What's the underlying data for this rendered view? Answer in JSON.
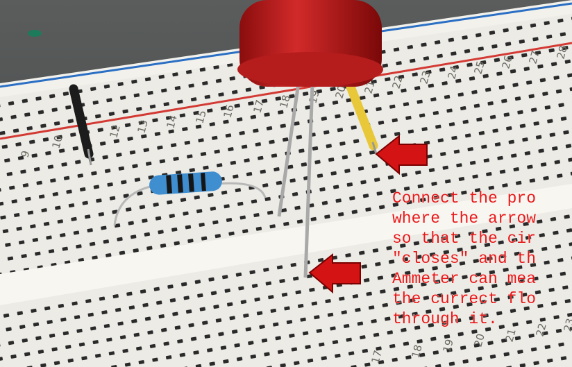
{
  "annotation": {
    "lines": [
      "Connect the pro",
      "where the arrow",
      "so that the cir",
      "\"closes\" and th",
      "Ammeter can mea",
      "the currect flo",
      "through it."
    ]
  },
  "breadboard": {
    "top_numbers": [
      "9",
      "10",
      "12",
      "13",
      "14",
      "15",
      "16",
      "17",
      "18",
      "19",
      "20",
      "21",
      "22",
      "23",
      "24",
      "25",
      "26",
      "27",
      "28"
    ],
    "bottom_numbers": [
      "17",
      "18",
      "19",
      "20",
      "21",
      "22",
      "23"
    ]
  }
}
